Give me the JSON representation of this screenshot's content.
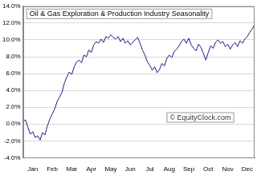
{
  "chart_data": {
    "type": "line",
    "title": "Oil & Gas Exploration & Production Industry Seasonality",
    "annotations": [
      "© EquityClock.com"
    ],
    "categories": [
      null,
      null,
      null,
      null,
      "Jan",
      null,
      null,
      null,
      null,
      null,
      null,
      null,
      "Feb",
      null,
      null,
      null,
      null,
      null,
      null,
      null,
      "Mar",
      null,
      null,
      null,
      null,
      null,
      null,
      null,
      "Apr",
      null,
      null,
      null,
      null,
      null,
      null,
      null,
      "May",
      null,
      null,
      null,
      null,
      null,
      null,
      null,
      "Jun",
      null,
      null,
      null,
      null,
      null,
      null,
      null,
      "Jul",
      null,
      null,
      null,
      null,
      null,
      null,
      null,
      "Aug",
      null,
      null,
      null,
      null,
      null,
      null,
      null,
      "Sep",
      null,
      null,
      null,
      null,
      null,
      null,
      null,
      "Oct",
      null,
      null,
      null,
      null,
      null,
      null,
      null,
      "Nov",
      null,
      null,
      null,
      null,
      null,
      null,
      null,
      "Dec",
      null,
      null,
      null
    ],
    "values": [
      0.3,
      0.5,
      -0.4,
      -1.2,
      -0.9,
      -1.6,
      -1.4,
      -1.9,
      -1.0,
      -1.3,
      -0.2,
      0.6,
      1.2,
      1.8,
      2.7,
      3.2,
      3.8,
      4.9,
      5.6,
      6.2,
      5.9,
      6.8,
      7.4,
      7.6,
      7.3,
      8.2,
      8.0,
      8.8,
      8.5,
      9.4,
      9.8,
      9.6,
      10.1,
      9.7,
      10.4,
      10.2,
      10.6,
      10.3,
      10.1,
      10.4,
      9.8,
      10.2,
      9.6,
      9.9,
      9.4,
      9.7,
      10.0,
      10.3,
      9.6,
      8.8,
      8.2,
      7.4,
      7.0,
      6.4,
      6.8,
      6.1,
      6.5,
      7.2,
      6.9,
      7.8,
      8.2,
      7.9,
      8.6,
      8.9,
      9.3,
      9.8,
      10.1,
      9.6,
      10.2,
      9.4,
      9.0,
      8.7,
      9.5,
      9.1,
      8.4,
      7.6,
      8.5,
      9.3,
      9.0,
      9.7,
      10.0,
      9.6,
      9.8,
      9.2,
      9.5,
      8.9,
      9.4,
      9.7,
      9.2,
      9.9,
      9.6,
      10.1,
      10.4,
      10.9,
      11.3,
      11.8
    ],
    "color": "#1c1c84",
    "ylim": [
      -4,
      14
    ],
    "yticks": [
      {
        "value": -4,
        "label": "-4.0%"
      },
      {
        "value": -2,
        "label": "-2.0%"
      },
      {
        "value": 0,
        "label": "0.0%"
      },
      {
        "value": 2,
        "label": "2.0%"
      },
      {
        "value": 4,
        "label": "4.0%"
      },
      {
        "value": 6,
        "label": "6.0%"
      },
      {
        "value": 8,
        "label": "8.0%"
      },
      {
        "value": 10,
        "label": "10.0%"
      },
      {
        "value": 12,
        "label": "12.0%"
      },
      {
        "value": 14,
        "label": "14.0%"
      }
    ],
    "grid": true
  }
}
